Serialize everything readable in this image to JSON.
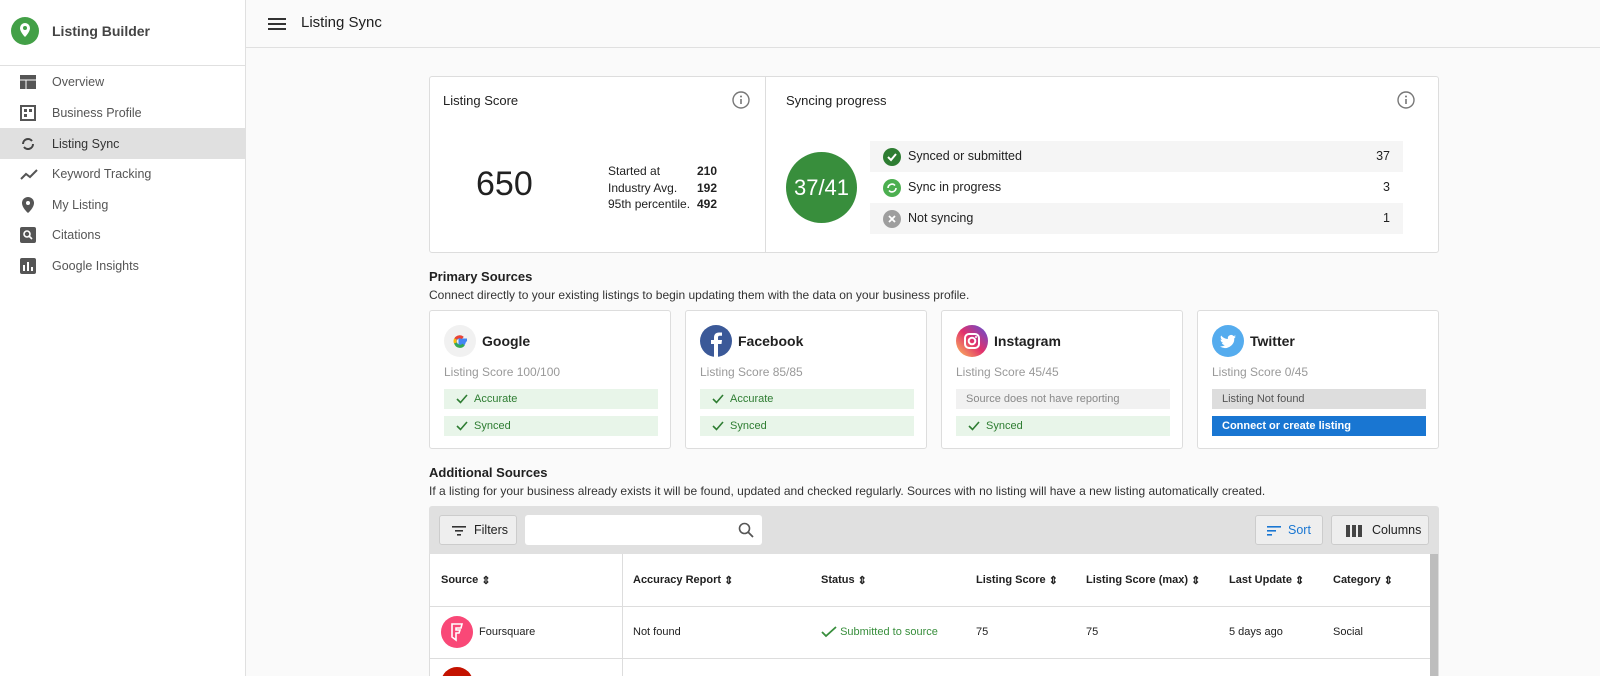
{
  "app": {
    "name": "Listing Builder"
  },
  "nav": [
    "Overview",
    "Business Profile",
    "Listing Sync",
    "Keyword Tracking",
    "My Listing",
    "Citations",
    "Google Insights"
  ],
  "header": {
    "title": "Listing Sync"
  },
  "listing_score": {
    "title": "Listing Score",
    "score": 650,
    "stats": [
      {
        "label": "Started at",
        "value": 210
      },
      {
        "label": "Industry Avg.",
        "value": 192
      },
      {
        "label": "95th percentile.",
        "value": 492
      }
    ]
  },
  "syncing": {
    "title": "Syncing progress",
    "ratio": "37/41",
    "rows": [
      {
        "label": "Synced or submitted",
        "count": 37
      },
      {
        "label": "Sync in progress",
        "count": 3
      },
      {
        "label": "Not syncing",
        "count": 1
      }
    ]
  },
  "primary": {
    "title": "Primary Sources",
    "description": "Connect directly to your existing listings to begin updating them with the data on your business profile.",
    "sources": [
      {
        "name": "Google",
        "score": "Listing Score 100/100",
        "badges": [
          "Accurate",
          "Synced"
        ]
      },
      {
        "name": "Facebook",
        "score": "Listing Score 85/85",
        "badges": [
          "Accurate",
          "Synced"
        ]
      },
      {
        "name": "Instagram",
        "score": "Listing Score 45/45",
        "badges": [
          "Source does not have reporting",
          "Synced"
        ]
      },
      {
        "name": "Twitter",
        "score": "Listing Score 0/45",
        "badges": [
          "Listing Not found",
          "Connect or create listing"
        ]
      }
    ]
  },
  "additional": {
    "title": "Additional Sources",
    "description": "If a listing for your business already exists it will be found, updated and checked regularly. Sources with no listing will have a new listing automatically created.",
    "toolbar": {
      "filters": "Filters",
      "sort": "Sort",
      "columns": "Columns"
    },
    "table": {
      "columns": [
        "Source",
        "Accuracy Report",
        "Status",
        "Listing Score",
        "Listing Score (max)",
        "Last Update",
        "Category"
      ],
      "rows": [
        [
          "Foursquare",
          "Not found",
          "Submitted to source",
          75,
          75,
          "5 days ago",
          "Social"
        ]
      ]
    }
  }
}
